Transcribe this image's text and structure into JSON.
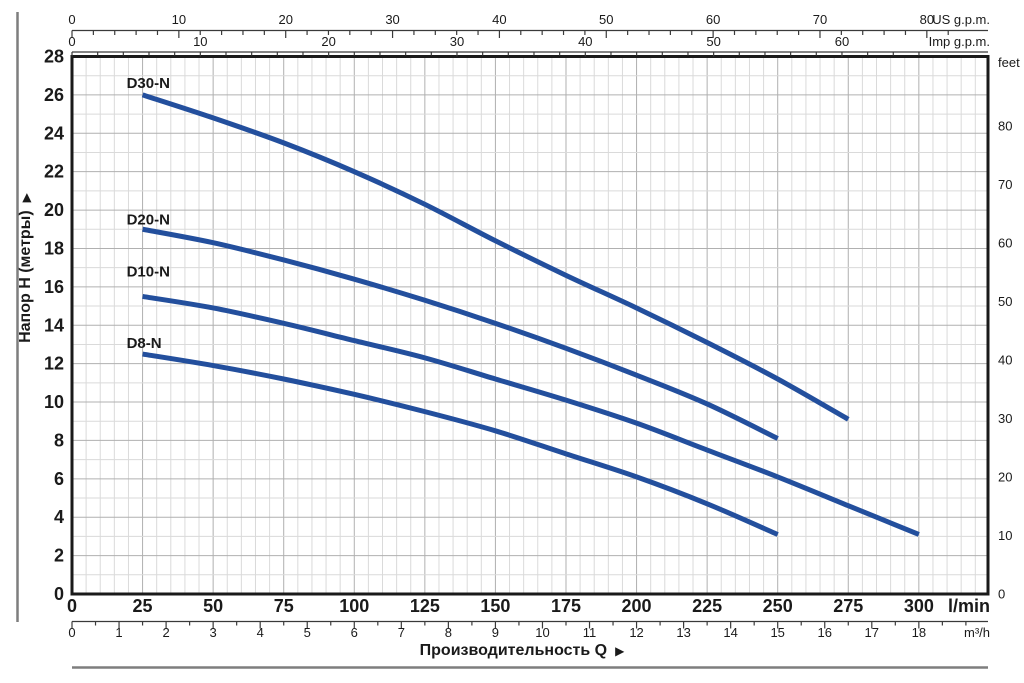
{
  "page": {
    "background": "#ffffff"
  },
  "chart_data": {
    "type": "line",
    "title": "",
    "xlabel": "Производительность Q",
    "xlabel_arrow": "▶",
    "ylabel": "Напор H (метры)",
    "ylabel_arrow": "▶",
    "x_axis": {
      "unit": "l/min",
      "min": 0,
      "max": 325,
      "tick_labels": [
        0,
        25,
        50,
        75,
        100,
        125,
        150,
        175,
        200,
        225,
        250,
        275,
        300
      ],
      "minor_grid_step": 5,
      "major_grid_step": 25
    },
    "y_axis": {
      "unit": "м",
      "min": 0,
      "max": 28,
      "tick_labels": [
        0,
        2,
        4,
        6,
        8,
        10,
        12,
        14,
        16,
        18,
        20,
        22,
        24,
        26,
        28
      ],
      "minor_grid_step": 1,
      "major_grid_step": 2
    },
    "secondary_axes": {
      "top_us_gpm": {
        "label": "US g.p.m.",
        "liters_per_unit": 3.7854,
        "tick_step": 2,
        "label_step": 10,
        "max_label": 80,
        "labels": [
          0,
          10,
          20,
          30,
          40,
          50,
          60,
          70,
          80
        ]
      },
      "top_imp_gpm": {
        "label": "Imp g.p.m.",
        "liters_per_unit": 4.5461,
        "tick_step": 2,
        "label_step": 10,
        "max_label": 60,
        "labels": [
          0,
          10,
          20,
          30,
          40,
          50,
          60
        ]
      },
      "right_feet": {
        "label": "feet",
        "meters_per_unit": 0.3048,
        "tick_step": 2,
        "label_step": 10,
        "max_label": 80,
        "labels": [
          0,
          10,
          20,
          30,
          40,
          50,
          60,
          70,
          80
        ]
      },
      "bottom_m3h": {
        "label": "m³/h",
        "liters_per_unit": 16.6667,
        "tick_step": 0.5,
        "label_step": 1,
        "max_label": 18,
        "labels": [
          0,
          1,
          2,
          3,
          4,
          5,
          6,
          7,
          8,
          9,
          10,
          11,
          12,
          13,
          14,
          15,
          16,
          17,
          18
        ]
      }
    },
    "grid": true,
    "legend_position": "inline-labels",
    "series": [
      {
        "name": "D30-N",
        "points": [
          [
            25,
            26.0
          ],
          [
            50,
            24.8
          ],
          [
            75,
            23.5
          ],
          [
            100,
            22.0
          ],
          [
            125,
            20.3
          ],
          [
            150,
            18.4
          ],
          [
            175,
            16.6
          ],
          [
            200,
            14.9
          ],
          [
            225,
            13.1
          ],
          [
            250,
            11.2
          ],
          [
            275,
            9.1
          ]
        ]
      },
      {
        "name": "D20-N",
        "points": [
          [
            25,
            19.0
          ],
          [
            50,
            18.3
          ],
          [
            75,
            17.4
          ],
          [
            100,
            16.4
          ],
          [
            125,
            15.3
          ],
          [
            150,
            14.1
          ],
          [
            175,
            12.8
          ],
          [
            200,
            11.4
          ],
          [
            225,
            9.9
          ],
          [
            250,
            8.1
          ]
        ]
      },
      {
        "name": "D10-N",
        "points": [
          [
            25,
            15.5
          ],
          [
            50,
            14.9
          ],
          [
            75,
            14.1
          ],
          [
            100,
            13.2
          ],
          [
            125,
            12.3
          ],
          [
            150,
            11.2
          ],
          [
            175,
            10.1
          ],
          [
            200,
            8.9
          ],
          [
            225,
            7.5
          ],
          [
            250,
            6.1
          ],
          [
            275,
            4.6
          ],
          [
            300,
            3.1
          ]
        ]
      },
      {
        "name": "D8-N",
        "points": [
          [
            25,
            12.5
          ],
          [
            50,
            11.9
          ],
          [
            75,
            11.2
          ],
          [
            100,
            10.4
          ],
          [
            125,
            9.5
          ],
          [
            150,
            8.5
          ],
          [
            175,
            7.3
          ],
          [
            200,
            6.1
          ],
          [
            225,
            4.7
          ],
          [
            250,
            3.1
          ]
        ]
      }
    ],
    "colors": {
      "curve": "#234f9d",
      "grid_minor": "#dadada",
      "grid_major": "#b0b0b0",
      "plot_border": "#1a1a1a",
      "axis_line": "#3a3a3a",
      "text": "#1a1a1a",
      "page_rule": "#7e7e7e"
    }
  }
}
